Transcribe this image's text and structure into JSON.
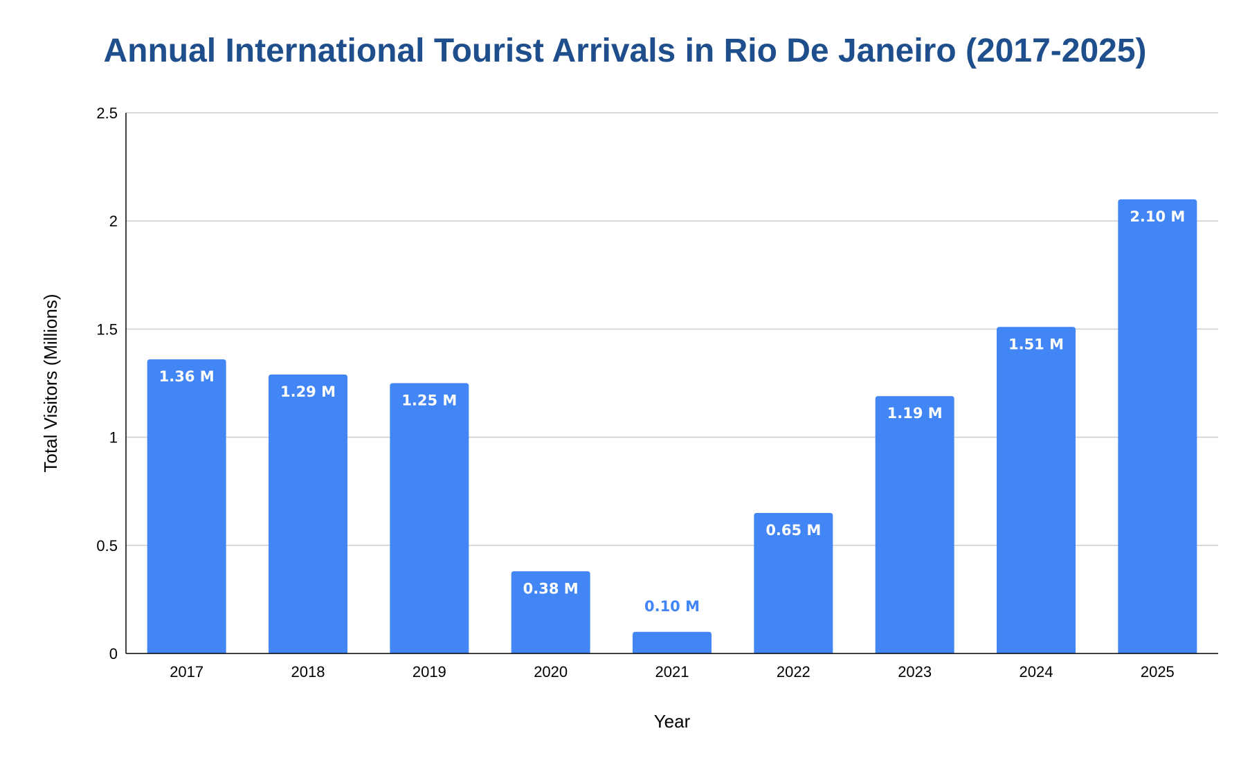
{
  "chart_data": {
    "type": "bar",
    "title": "Annual International Tourist Arrivals in Rio De Janeiro (2017-2025)",
    "xlabel": "Year",
    "ylabel": "Total Visitors (Millions)",
    "categories": [
      "2017",
      "2018",
      "2019",
      "2020",
      "2021",
      "2022",
      "2023",
      "2024",
      "2025"
    ],
    "values": [
      1.36,
      1.29,
      1.25,
      0.38,
      0.1,
      0.65,
      1.19,
      1.51,
      2.1
    ],
    "data_labels": [
      "1.36 M",
      "1.29 M",
      "1.25 M",
      "0.38 M",
      "0.10 M",
      "0.65 M",
      "1.19 M",
      "1.51 M",
      "2.10 M"
    ],
    "ylim": [
      0,
      2.5
    ],
    "yticks": [
      0,
      0.5,
      1,
      1.5,
      2,
      2.5
    ],
    "ytick_labels": [
      "0",
      "0.5",
      "1",
      "1.5",
      "2",
      "2.5"
    ],
    "grid": true,
    "legend": "none",
    "colors": {
      "bar": "#4285f4",
      "title": "#1f4e8c",
      "grid": "#cccccc",
      "axis": "#000000",
      "label_inside": "#ffffff",
      "label_outside": "#4285f4"
    }
  }
}
